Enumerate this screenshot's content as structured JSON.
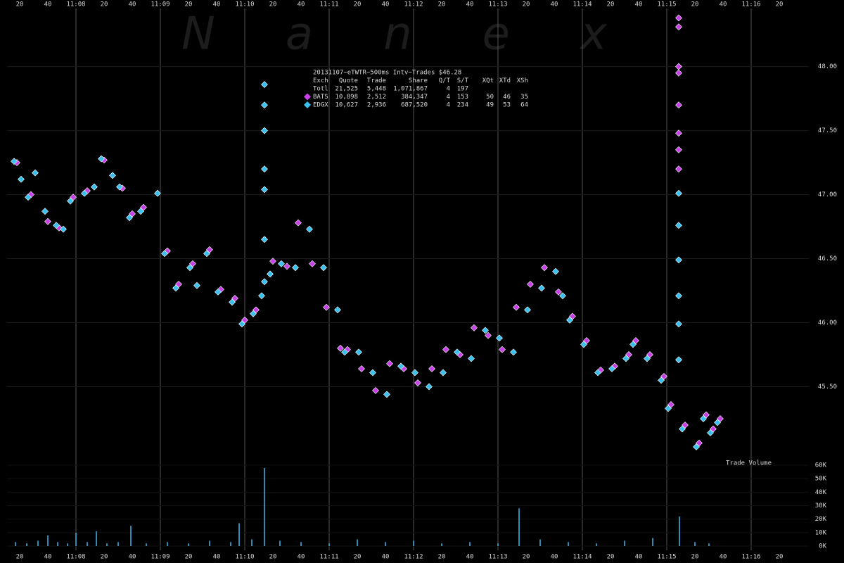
{
  "chart_data": [
    {
      "type": "scatter",
      "watermark": "Nanex",
      "xlim": [
        11,
        581
      ],
      "xticks": [
        20,
        40,
        {
          "value": 60,
          "label": "11:08"
        },
        {
          "value": 80,
          "label": "20"
        },
        {
          "value": 100,
          "label": "40"
        },
        {
          "value": 120,
          "label": "11:09"
        },
        {
          "value": 140,
          "label": "20"
        },
        {
          "value": 160,
          "label": "40"
        },
        {
          "value": 180,
          "label": "11:10"
        },
        {
          "value": 200,
          "label": "20"
        },
        {
          "value": 220,
          "label": "40"
        },
        {
          "value": 240,
          "label": "11:11"
        },
        {
          "value": 260,
          "label": "20"
        },
        {
          "value": 280,
          "label": "40"
        },
        {
          "value": 300,
          "label": "11:12"
        },
        {
          "value": 320,
          "label": "20"
        },
        {
          "value": 340,
          "label": "40"
        },
        {
          "value": 360,
          "label": "11:13"
        },
        {
          "value": 380,
          "label": "20"
        },
        {
          "value": 400,
          "label": "40"
        },
        {
          "value": 420,
          "label": "11:14"
        },
        {
          "value": 440,
          "label": "20"
        },
        {
          "value": 460,
          "label": "40"
        },
        {
          "value": 480,
          "label": "11:15"
        },
        {
          "value": 500,
          "label": "20"
        },
        {
          "value": 520,
          "label": "40"
        },
        {
          "value": 540,
          "label": "11:16"
        },
        {
          "value": 560,
          "label": "20"
        }
      ],
      "ylim": [
        44.92,
        48.52
      ],
      "yticks": [
        {
          "value": 45.5,
          "label": "45.50"
        },
        {
          "value": 46,
          "label": "46.00"
        },
        {
          "value": 46.5,
          "label": "46.50"
        },
        {
          "value": 47,
          "label": "47.00"
        },
        {
          "value": 47.5,
          "label": "47.50"
        },
        {
          "value": 48,
          "label": "48.00"
        }
      ],
      "summary": {
        "title": "20131107~eTWTR~500ms Intv~Trades $46.28",
        "header": [
          "Exch",
          "Quote",
          "Trade",
          "Share",
          "Q/T",
          "S/T",
          "XQt",
          "XTd",
          "XSh"
        ],
        "total": [
          "Totl",
          "21,525",
          "5,448",
          "1,071,867",
          "4",
          "197"
        ],
        "series_stats": [
          [
            "10,898",
            "2,512",
            "384,347",
            "4",
            "153",
            "50",
            "46",
            "35"
          ],
          [
            "10,627",
            "2,936",
            "687,520",
            "4",
            "234",
            "49",
            "53",
            "64"
          ]
        ]
      },
      "series": [
        {
          "name": "BATS",
          "color": "#c840e8",
          "x": [
            18,
            28,
            40,
            48,
            58,
            68,
            80,
            93,
            100,
            108,
            125,
            133,
            143,
            155,
            163,
            173,
            180,
            188,
            200,
            210,
            218,
            228,
            238,
            248,
            253,
            263,
            273,
            283,
            293,
            303,
            313,
            323,
            333,
            343,
            353,
            363,
            373,
            383,
            393,
            403,
            413,
            423,
            433,
            443,
            453,
            458,
            468,
            478,
            483,
            488.5,
            488.5,
            488.5,
            488.5,
            488.5,
            488.5,
            488.5,
            488.5,
            493,
            503,
            508,
            513,
            518
          ],
          "values": [
            47.25,
            47.0,
            46.79,
            46.74,
            46.98,
            47.03,
            47.27,
            47.05,
            46.85,
            46.9,
            46.56,
            46.3,
            46.46,
            46.57,
            46.26,
            46.19,
            46.02,
            46.1,
            46.48,
            46.44,
            46.78,
            46.46,
            46.12,
            45.8,
            45.79,
            45.64,
            45.47,
            45.68,
            45.64,
            45.53,
            45.64,
            45.79,
            45.75,
            45.96,
            45.9,
            45.79,
            46.12,
            46.3,
            46.43,
            46.24,
            46.05,
            45.86,
            45.63,
            45.66,
            45.75,
            45.86,
            45.75,
            45.58,
            45.36,
            48.38,
            48.31,
            48.0,
            47.95,
            47.7,
            47.48,
            47.35,
            47.2,
            45.2,
            45.06,
            45.28,
            45.17,
            45.25
          ]
        },
        {
          "name": "EDGX",
          "color": "#38c0f0",
          "x": [
            16,
            21,
            26,
            31,
            38,
            46,
            51,
            56,
            66,
            73,
            78,
            86,
            91,
            98,
            106,
            118,
            123,
            131,
            141,
            146,
            153,
            161,
            171,
            178,
            186,
            192,
            194,
            194,
            194,
            194,
            194,
            194,
            194,
            198,
            206,
            216,
            226,
            236,
            246,
            251,
            261,
            271,
            281,
            291,
            301,
            311,
            321,
            331,
            341,
            351,
            361,
            371,
            381,
            391,
            401,
            406,
            411,
            421,
            431,
            441,
            451,
            456,
            466,
            476,
            481,
            488.5,
            488.5,
            488.5,
            488.5,
            488.5,
            488.5,
            491,
            501,
            506,
            511,
            516
          ],
          "values": [
            47.26,
            47.12,
            46.98,
            47.17,
            46.87,
            46.76,
            46.73,
            46.95,
            47.01,
            47.06,
            47.28,
            47.15,
            47.06,
            46.82,
            46.87,
            47.01,
            46.54,
            46.27,
            46.43,
            46.29,
            46.54,
            46.24,
            46.16,
            45.99,
            46.07,
            46.21,
            46.32,
            46.65,
            47.04,
            47.2,
            47.5,
            47.7,
            47.86,
            46.38,
            46.46,
            46.43,
            46.73,
            46.43,
            46.1,
            45.77,
            45.77,
            45.61,
            45.44,
            45.66,
            45.61,
            45.5,
            45.61,
            45.77,
            45.72,
            45.94,
            45.88,
            45.77,
            46.1,
            46.27,
            46.4,
            46.21,
            46.02,
            45.83,
            45.61,
            45.64,
            45.72,
            45.83,
            45.72,
            45.55,
            45.33,
            47.01,
            46.76,
            46.49,
            46.21,
            45.99,
            45.71,
            45.17,
            45.03,
            45.25,
            45.14,
            45.22
          ]
        }
      ]
    },
    {
      "type": "bar",
      "title": "Trade Volume",
      "color": "#40b8f0",
      "ylim": [
        0,
        60000
      ],
      "yticks": [
        {
          "value": 0,
          "label": "0K"
        },
        {
          "value": 10000,
          "label": "10K"
        },
        {
          "value": 20000,
          "label": "20K"
        },
        {
          "value": 30000,
          "label": "30K"
        },
        {
          "value": 40000,
          "label": "40K"
        },
        {
          "value": 50000,
          "label": "50K"
        },
        {
          "value": 60000,
          "label": "60K"
        }
      ],
      "x": [
        17,
        25,
        33,
        40,
        47,
        54,
        60,
        68,
        74.5,
        82,
        90,
        99,
        110,
        125,
        140,
        155,
        170,
        176,
        185,
        194,
        205,
        220,
        240,
        260,
        280,
        300,
        320,
        340,
        360,
        375,
        390,
        410,
        430,
        450,
        470,
        489,
        500,
        510
      ],
      "values": [
        3000,
        2000,
        4000,
        8000,
        3000,
        2000,
        10000,
        3000,
        11000,
        2000,
        3000,
        15000,
        2000,
        3000,
        2000,
        4000,
        3000,
        17000,
        5000,
        58000,
        4000,
        3000,
        2000,
        5000,
        3000,
        4000,
        2000,
        3000,
        2000,
        28000,
        5000,
        3000,
        2000,
        4000,
        6000,
        22000,
        3000,
        2000
      ]
    }
  ]
}
